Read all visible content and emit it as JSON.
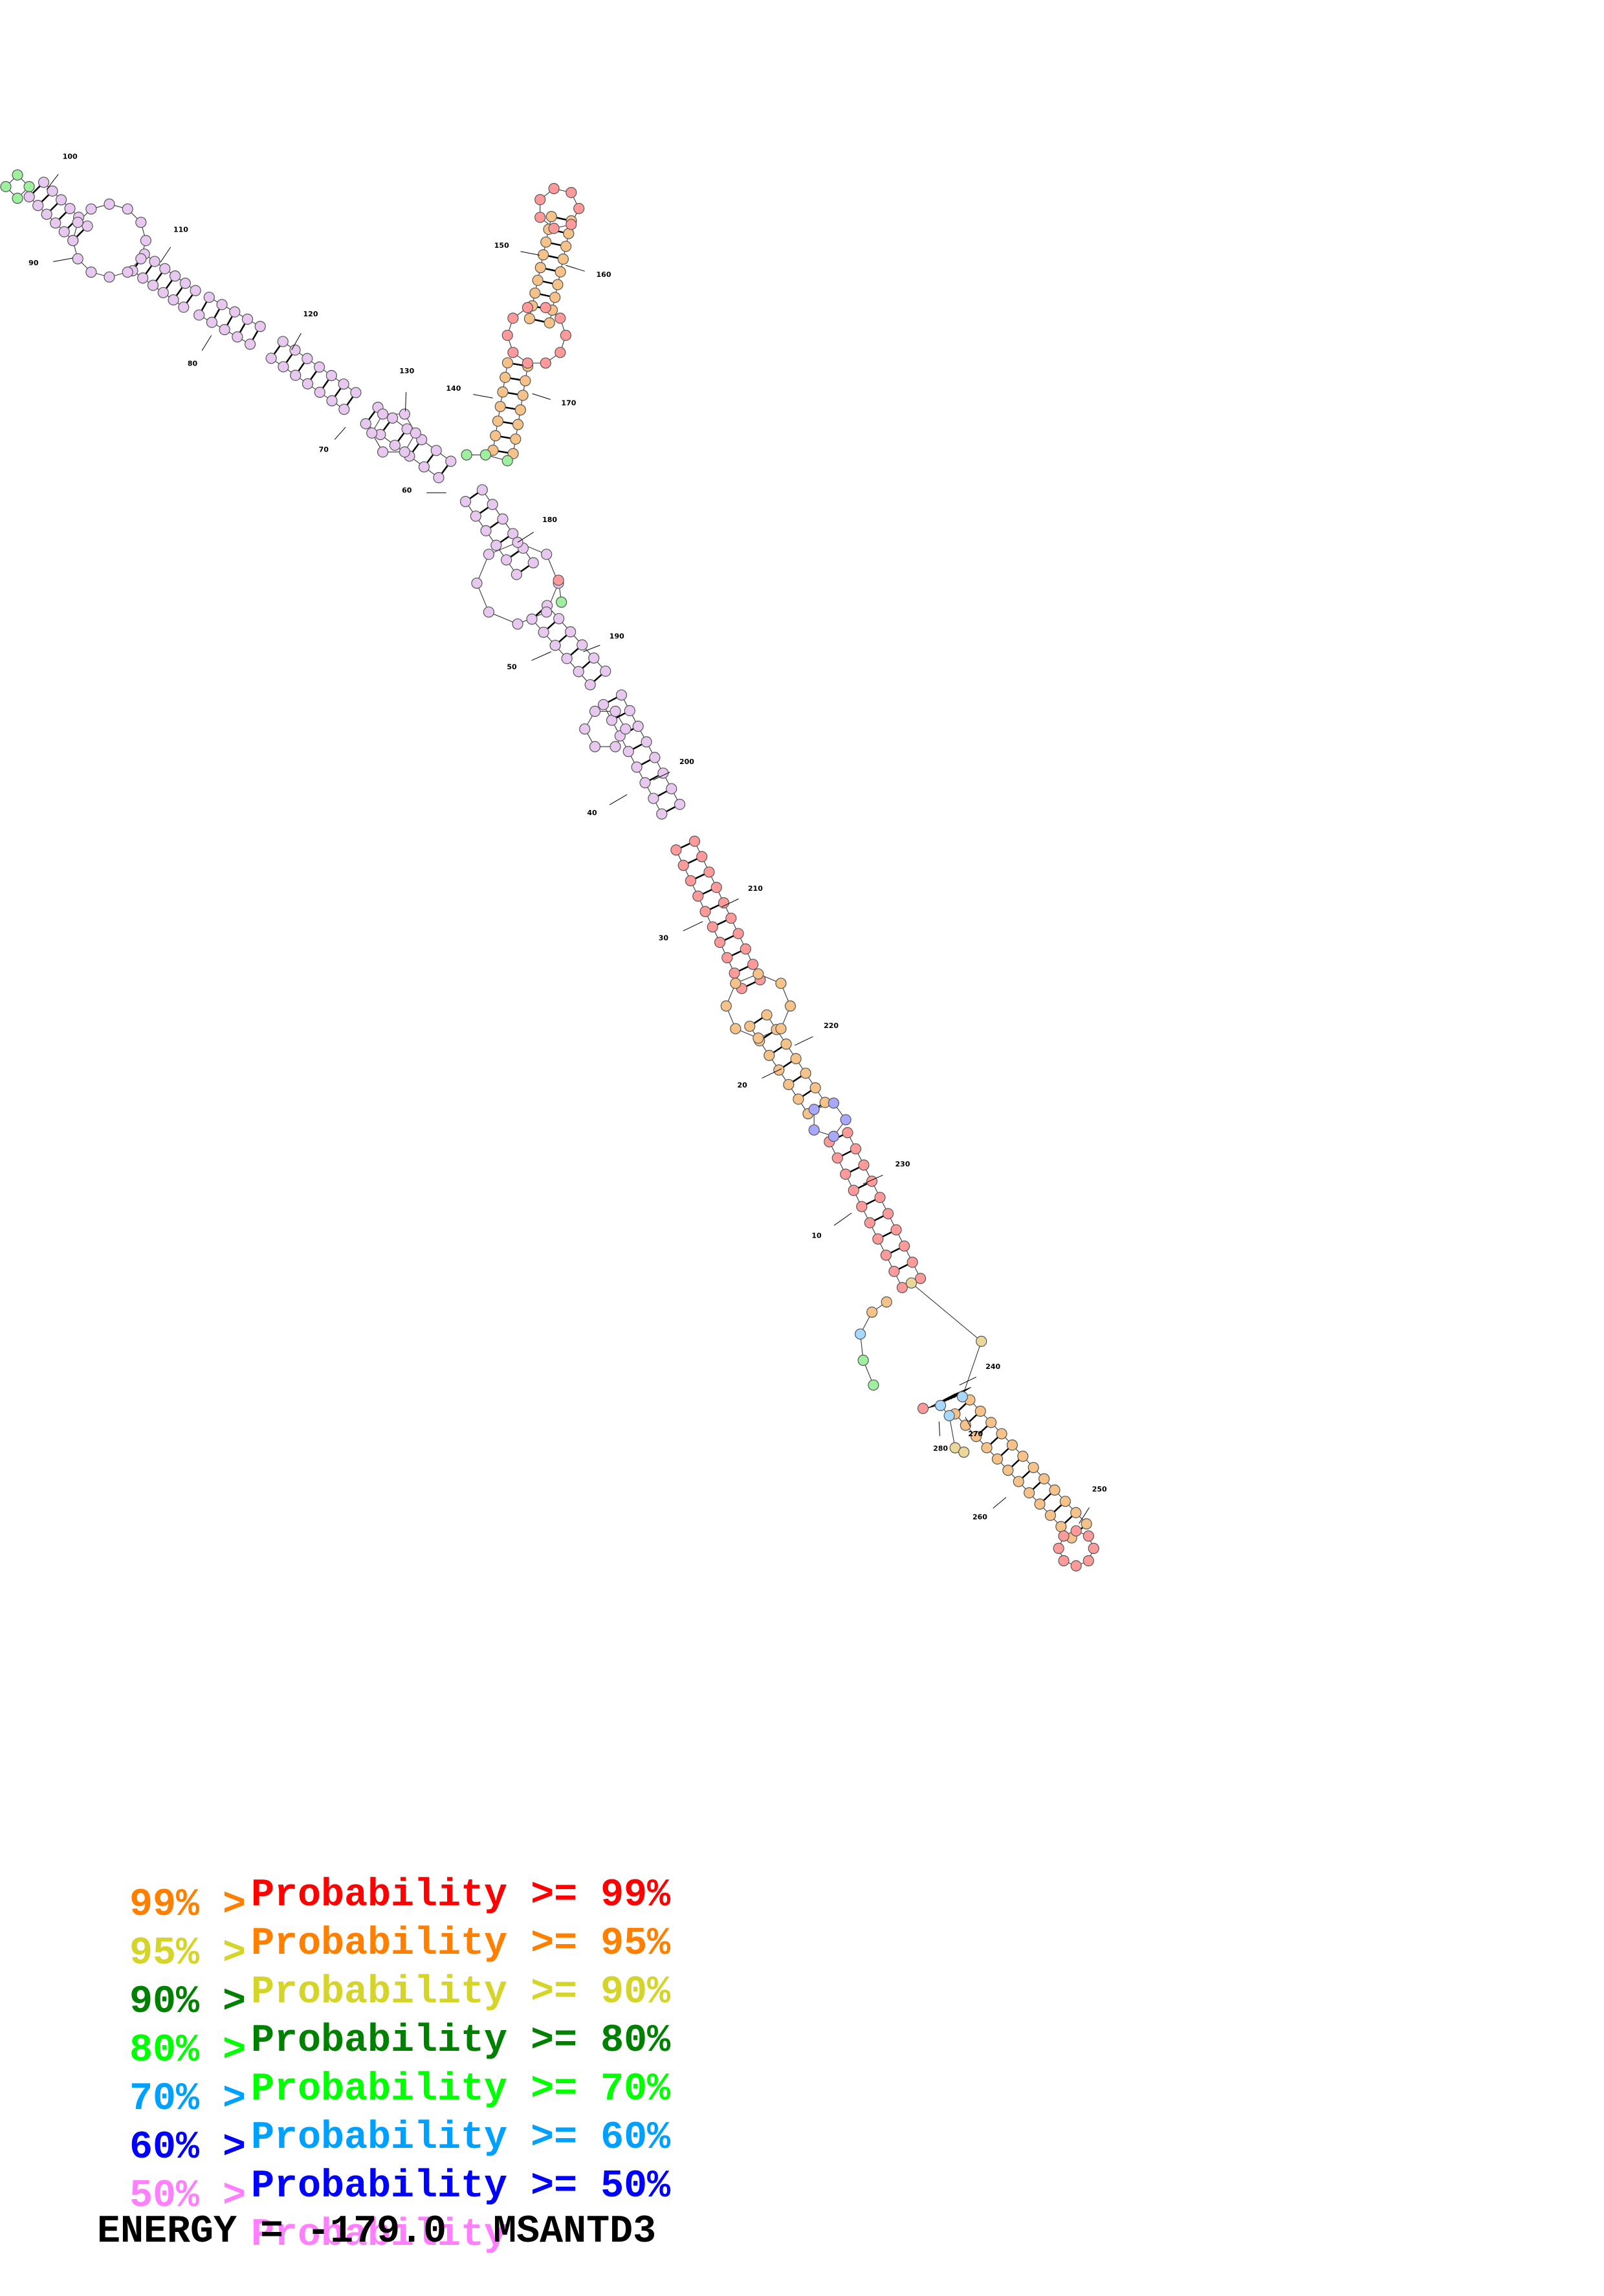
{
  "structure": {
    "tick_labels": [
      "10",
      "20",
      "30",
      "40",
      "50",
      "60",
      "70",
      "80",
      "90",
      "100",
      "110",
      "120",
      "130",
      "140",
      "150",
      "160",
      "170",
      "180",
      "190",
      "200",
      "210",
      "220",
      "230",
      "240",
      "250",
      "260",
      "270",
      "280"
    ]
  },
  "legend": {
    "rows": [
      {
        "prefix": "",
        "text": "Probability >= 99%",
        "color": "#ff0000"
      },
      {
        "prefix": "99% >",
        "text": "Probability >= 95%",
        "color": "#ff8000"
      },
      {
        "prefix": "95% >",
        "text": "Probability >= 90%",
        "color": "#d4d42a"
      },
      {
        "prefix": "90% >",
        "text": "Probability >= 80%",
        "color": "#008000"
      },
      {
        "prefix": "80% >",
        "text": "Probability >= 70%",
        "color": "#00ff00"
      },
      {
        "prefix": "70% >",
        "text": "Probability >= 60%",
        "color": "#00a0ff"
      },
      {
        "prefix": "60% >",
        "text": "Probability >= 50%",
        "color": "#0000ff"
      },
      {
        "prefix": "50% >",
        "text": "Probability",
        "color": "#ff80ff"
      }
    ]
  },
  "footer": {
    "energy_label": "ENERGY = -179.0",
    "name": "MSANTD3"
  }
}
